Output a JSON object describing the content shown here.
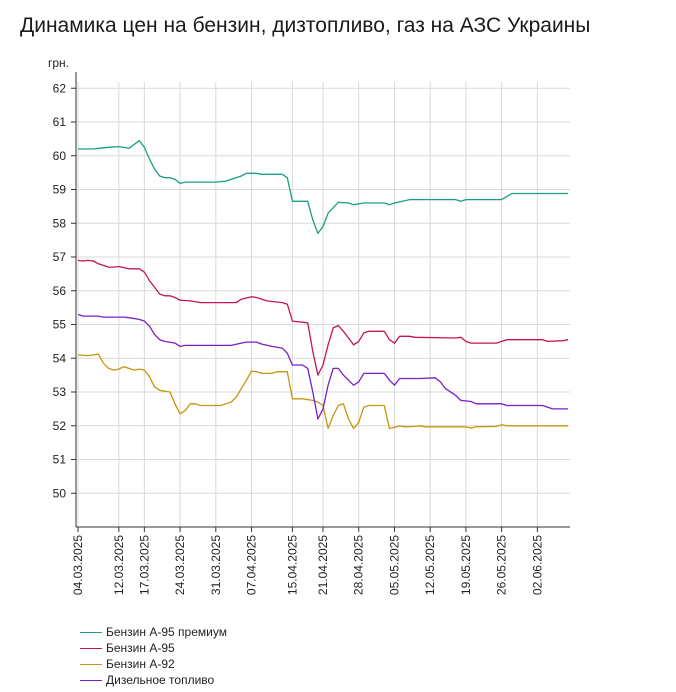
{
  "colors": {
    "premium95": "#1a9e85",
    "a95": "#c4145a",
    "a92": "#c8960c",
    "diesel": "#7a1fc4",
    "grid": "#d9d9d9",
    "axis": "#333333"
  },
  "chart_data": {
    "type": "line",
    "title": "Динамика цен на бензин, дизтопливо, газ на АЗС Украины",
    "ylabel": "грн.",
    "ylim": [
      49,
      62.5
    ],
    "yticks": [
      50,
      51,
      52,
      53,
      54,
      55,
      56,
      57,
      58,
      59,
      60,
      61,
      62
    ],
    "x_range": [
      "2025-03-04",
      "2025-06-08"
    ],
    "x_ticks": [
      "04.03.2025",
      "12.03.2025",
      "17.03.2025",
      "24.03.2025",
      "31.03.2025",
      "07.04.2025",
      "15.04.2025",
      "21.04.2025",
      "28.04.2025",
      "05.05.2025",
      "12.05.2025",
      "19.05.2025",
      "26.05.2025",
      "02.06.2025"
    ],
    "grid": true,
    "legend_position": "bottom",
    "series": [
      {
        "name": "Бензин А-95 премиум",
        "color_key": "premium95",
        "points": [
          [
            "2025-03-04",
            60.2
          ],
          [
            "2025-03-07",
            60.2
          ],
          [
            "2025-03-08",
            60.22
          ],
          [
            "2025-03-10",
            60.25
          ],
          [
            "2025-03-12",
            60.27
          ],
          [
            "2025-03-14",
            60.22
          ],
          [
            "2025-03-16",
            60.45
          ],
          [
            "2025-03-17",
            60.25
          ],
          [
            "2025-03-18",
            59.9
          ],
          [
            "2025-03-19",
            59.6
          ],
          [
            "2025-03-20",
            59.4
          ],
          [
            "2025-03-21",
            59.35
          ],
          [
            "2025-03-22",
            59.35
          ],
          [
            "2025-03-23",
            59.3
          ],
          [
            "2025-03-24",
            59.18
          ],
          [
            "2025-03-25",
            59.22
          ],
          [
            "2025-03-31",
            59.22
          ],
          [
            "2025-04-02",
            59.25
          ],
          [
            "2025-04-03",
            59.3
          ],
          [
            "2025-04-05",
            59.4
          ],
          [
            "2025-04-06",
            59.48
          ],
          [
            "2025-04-08",
            59.48
          ],
          [
            "2025-04-09",
            59.45
          ],
          [
            "2025-04-13",
            59.45
          ],
          [
            "2025-04-14",
            59.35
          ],
          [
            "2025-04-15",
            58.65
          ],
          [
            "2025-04-18",
            58.65
          ],
          [
            "2025-04-19",
            58.1
          ],
          [
            "2025-04-20",
            57.7
          ],
          [
            "2025-04-21",
            57.9
          ],
          [
            "2025-04-22",
            58.3
          ],
          [
            "2025-04-24",
            58.62
          ],
          [
            "2025-04-26",
            58.6
          ],
          [
            "2025-04-27",
            58.55
          ],
          [
            "2025-04-29",
            58.6
          ],
          [
            "2025-05-03",
            58.6
          ],
          [
            "2025-05-04",
            58.55
          ],
          [
            "2025-05-05",
            58.6
          ],
          [
            "2025-05-08",
            58.7
          ],
          [
            "2025-05-17",
            58.7
          ],
          [
            "2025-05-18",
            58.65
          ],
          [
            "2025-05-19",
            58.7
          ],
          [
            "2025-05-26",
            58.7
          ],
          [
            "2025-05-28",
            58.88
          ],
          [
            "2025-06-08",
            58.88
          ]
        ]
      },
      {
        "name": "Бензин А-95",
        "color_key": "a95",
        "points": [
          [
            "2025-03-04",
            56.9
          ],
          [
            "2025-03-05",
            56.88
          ],
          [
            "2025-03-06",
            56.9
          ],
          [
            "2025-03-07",
            56.88
          ],
          [
            "2025-03-08",
            56.8
          ],
          [
            "2025-03-10",
            56.7
          ],
          [
            "2025-03-11",
            56.7
          ],
          [
            "2025-03-12",
            56.72
          ],
          [
            "2025-03-14",
            56.65
          ],
          [
            "2025-03-16",
            56.65
          ],
          [
            "2025-03-17",
            56.55
          ],
          [
            "2025-03-18",
            56.3
          ],
          [
            "2025-03-19",
            56.1
          ],
          [
            "2025-03-20",
            55.9
          ],
          [
            "2025-03-21",
            55.85
          ],
          [
            "2025-03-22",
            55.85
          ],
          [
            "2025-03-23",
            55.8
          ],
          [
            "2025-03-24",
            55.72
          ],
          [
            "2025-03-26",
            55.7
          ],
          [
            "2025-03-28",
            55.65
          ],
          [
            "2025-04-04",
            55.65
          ],
          [
            "2025-04-05",
            55.75
          ],
          [
            "2025-04-07",
            55.82
          ],
          [
            "2025-04-08",
            55.8
          ],
          [
            "2025-04-10",
            55.7
          ],
          [
            "2025-04-13",
            55.65
          ],
          [
            "2025-04-14",
            55.6
          ],
          [
            "2025-04-15",
            55.1
          ],
          [
            "2025-04-18",
            55.05
          ],
          [
            "2025-04-19",
            54.2
          ],
          [
            "2025-04-20",
            53.5
          ],
          [
            "2025-04-21",
            53.8
          ],
          [
            "2025-04-22",
            54.4
          ],
          [
            "2025-04-23",
            54.9
          ],
          [
            "2025-04-24",
            54.97
          ],
          [
            "2025-04-25",
            54.8
          ],
          [
            "2025-04-26",
            54.6
          ],
          [
            "2025-04-27",
            54.4
          ],
          [
            "2025-04-28",
            54.5
          ],
          [
            "2025-04-29",
            54.75
          ],
          [
            "2025-04-30",
            54.8
          ],
          [
            "2025-05-03",
            54.8
          ],
          [
            "2025-05-04",
            54.55
          ],
          [
            "2025-05-05",
            54.45
          ],
          [
            "2025-05-06",
            54.65
          ],
          [
            "2025-05-08",
            54.65
          ],
          [
            "2025-05-09",
            54.62
          ],
          [
            "2025-05-17",
            54.6
          ],
          [
            "2025-05-18",
            54.62
          ],
          [
            "2025-05-19",
            54.5
          ],
          [
            "2025-05-20",
            54.45
          ],
          [
            "2025-05-25",
            54.45
          ],
          [
            "2025-05-26",
            54.5
          ],
          [
            "2025-05-27",
            54.55
          ],
          [
            "2025-06-03",
            54.55
          ],
          [
            "2025-06-04",
            54.5
          ],
          [
            "2025-06-07",
            54.52
          ],
          [
            "2025-06-08",
            54.55
          ]
        ]
      },
      {
        "name": "Бензин А-92",
        "color_key": "a92",
        "points": [
          [
            "2025-03-04",
            54.1
          ],
          [
            "2025-03-06",
            54.08
          ],
          [
            "2025-03-08",
            54.12
          ],
          [
            "2025-03-09",
            53.85
          ],
          [
            "2025-03-10",
            53.7
          ],
          [
            "2025-03-11",
            53.65
          ],
          [
            "2025-03-12",
            53.68
          ],
          [
            "2025-03-13",
            53.75
          ],
          [
            "2025-03-14",
            53.7
          ],
          [
            "2025-03-15",
            53.65
          ],
          [
            "2025-03-16",
            53.68
          ],
          [
            "2025-03-17",
            53.65
          ],
          [
            "2025-03-18",
            53.45
          ],
          [
            "2025-03-19",
            53.15
          ],
          [
            "2025-03-20",
            53.05
          ],
          [
            "2025-03-22",
            53.0
          ],
          [
            "2025-03-23",
            52.65
          ],
          [
            "2025-03-24",
            52.35
          ],
          [
            "2025-03-25",
            52.45
          ],
          [
            "2025-03-26",
            52.65
          ],
          [
            "2025-03-27",
            52.65
          ],
          [
            "2025-03-28",
            52.6
          ],
          [
            "2025-04-01",
            52.6
          ],
          [
            "2025-04-02",
            52.65
          ],
          [
            "2025-04-03",
            52.7
          ],
          [
            "2025-04-04",
            52.85
          ],
          [
            "2025-04-05",
            53.1
          ],
          [
            "2025-04-06",
            53.35
          ],
          [
            "2025-04-07",
            53.62
          ],
          [
            "2025-04-08",
            53.6
          ],
          [
            "2025-04-09",
            53.55
          ],
          [
            "2025-04-11",
            53.55
          ],
          [
            "2025-04-12",
            53.6
          ],
          [
            "2025-04-14",
            53.6
          ],
          [
            "2025-04-15",
            52.8
          ],
          [
            "2025-04-17",
            52.8
          ],
          [
            "2025-04-19",
            52.75
          ],
          [
            "2025-04-20",
            52.7
          ],
          [
            "2025-04-21",
            52.6
          ],
          [
            "2025-04-22",
            51.92
          ],
          [
            "2025-04-23",
            52.3
          ],
          [
            "2025-04-24",
            52.6
          ],
          [
            "2025-04-25",
            52.65
          ],
          [
            "2025-04-26",
            52.2
          ],
          [
            "2025-04-27",
            51.92
          ],
          [
            "2025-04-28",
            52.1
          ],
          [
            "2025-04-29",
            52.55
          ],
          [
            "2025-04-30",
            52.6
          ],
          [
            "2025-05-03",
            52.6
          ],
          [
            "2025-05-04",
            51.92
          ],
          [
            "2025-05-05",
            51.95
          ],
          [
            "2025-05-06",
            52.0
          ],
          [
            "2025-05-07",
            51.97
          ],
          [
            "2025-05-09",
            51.98
          ],
          [
            "2025-05-10",
            52.0
          ],
          [
            "2025-05-11",
            51.97
          ],
          [
            "2025-05-19",
            51.97
          ],
          [
            "2025-05-20",
            51.93
          ],
          [
            "2025-05-21",
            51.97
          ],
          [
            "2025-05-25",
            51.98
          ],
          [
            "2025-05-26",
            52.03
          ],
          [
            "2025-05-27",
            52.0
          ],
          [
            "2025-06-08",
            52.0
          ]
        ]
      },
      {
        "name": "Дизельное топливо",
        "color_key": "diesel",
        "points": [
          [
            "2025-03-04",
            55.3
          ],
          [
            "2025-03-05",
            55.25
          ],
          [
            "2025-03-08",
            55.25
          ],
          [
            "2025-03-09",
            55.22
          ],
          [
            "2025-03-13",
            55.22
          ],
          [
            "2025-03-14",
            55.2
          ],
          [
            "2025-03-16",
            55.15
          ],
          [
            "2025-03-17",
            55.1
          ],
          [
            "2025-03-18",
            54.95
          ],
          [
            "2025-03-19",
            54.7
          ],
          [
            "2025-03-20",
            54.55
          ],
          [
            "2025-03-21",
            54.5
          ],
          [
            "2025-03-23",
            54.45
          ],
          [
            "2025-03-24",
            54.35
          ],
          [
            "2025-03-25",
            54.38
          ],
          [
            "2025-04-03",
            54.38
          ],
          [
            "2025-04-05",
            54.45
          ],
          [
            "2025-04-06",
            54.48
          ],
          [
            "2025-04-08",
            54.48
          ],
          [
            "2025-04-09",
            54.42
          ],
          [
            "2025-04-11",
            54.35
          ],
          [
            "2025-04-13",
            54.3
          ],
          [
            "2025-04-14",
            54.15
          ],
          [
            "2025-04-15",
            53.8
          ],
          [
            "2025-04-17",
            53.8
          ],
          [
            "2025-04-18",
            53.7
          ],
          [
            "2025-04-19",
            53.0
          ],
          [
            "2025-04-20",
            52.2
          ],
          [
            "2025-04-21",
            52.5
          ],
          [
            "2025-04-22",
            53.2
          ],
          [
            "2025-04-23",
            53.7
          ],
          [
            "2025-04-24",
            53.7
          ],
          [
            "2025-04-25",
            53.5
          ],
          [
            "2025-04-26",
            53.35
          ],
          [
            "2025-04-27",
            53.2
          ],
          [
            "2025-04-28",
            53.3
          ],
          [
            "2025-04-29",
            53.55
          ],
          [
            "2025-05-03",
            53.55
          ],
          [
            "2025-05-04",
            53.35
          ],
          [
            "2025-05-05",
            53.2
          ],
          [
            "2025-05-06",
            53.4
          ],
          [
            "2025-05-10",
            53.4
          ],
          [
            "2025-05-13",
            53.42
          ],
          [
            "2025-05-14",
            53.3
          ],
          [
            "2025-05-15",
            53.1
          ],
          [
            "2025-05-17",
            52.9
          ],
          [
            "2025-05-18",
            52.75
          ],
          [
            "2025-05-20",
            52.72
          ],
          [
            "2025-05-21",
            52.65
          ],
          [
            "2025-05-26",
            52.65
          ],
          [
            "2025-05-27",
            52.6
          ],
          [
            "2025-06-03",
            52.6
          ],
          [
            "2025-06-05",
            52.5
          ],
          [
            "2025-06-08",
            52.5
          ]
        ]
      }
    ]
  }
}
